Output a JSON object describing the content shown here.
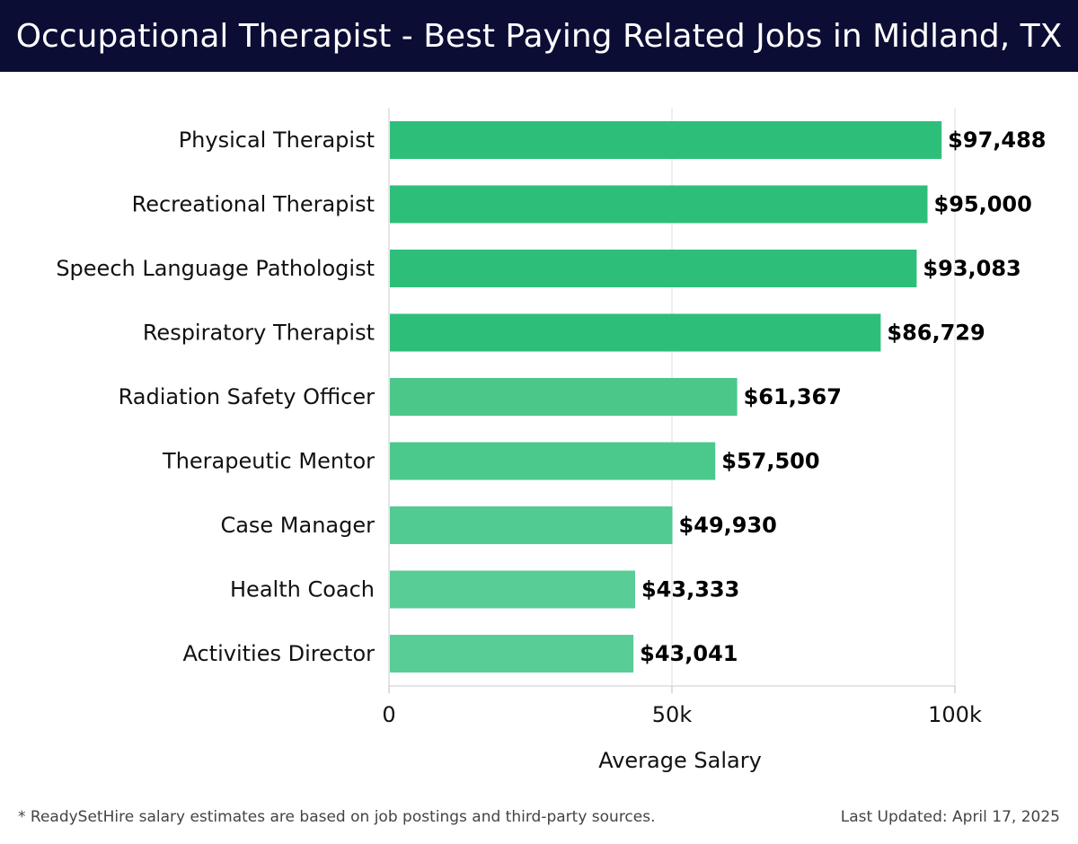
{
  "header": {
    "title": "Occupational Therapist - Best Paying Related Jobs in Midland, TX"
  },
  "chart_data": {
    "type": "bar",
    "orientation": "horizontal",
    "categories": [
      "Physical Therapist",
      "Recreational Therapist",
      "Speech Language Pathologist",
      "Respiratory Therapist",
      "Radiation Safety Officer",
      "Therapeutic Mentor",
      "Case Manager",
      "Health Coach",
      "Activities Director"
    ],
    "values": [
      97488,
      95000,
      93083,
      86729,
      61367,
      57500,
      49930,
      43333,
      43041
    ],
    "value_labels": [
      "$97,488",
      "$95,000",
      "$93,083",
      "$86,729",
      "$61,367",
      "$57,500",
      "$49,930",
      "$43,333",
      "$43,041"
    ],
    "bar_colors": [
      "#2dbf79",
      "#2dbf79",
      "#2dbf79",
      "#2dbf79",
      "#4bc78a",
      "#4bc98c",
      "#51cb91",
      "#58cd96",
      "#58cd96"
    ],
    "xlabel": "Average Salary",
    "ylabel": "",
    "xlim": [
      0,
      102500
    ],
    "xticks": [
      0,
      50000,
      100000
    ],
    "xtick_labels": [
      "0",
      "50k",
      "100k"
    ],
    "grid": true
  },
  "footer": {
    "note": "* ReadySetHire salary estimates are based on job postings and third-party sources.",
    "updated": "Last Updated: April 17, 2025"
  }
}
